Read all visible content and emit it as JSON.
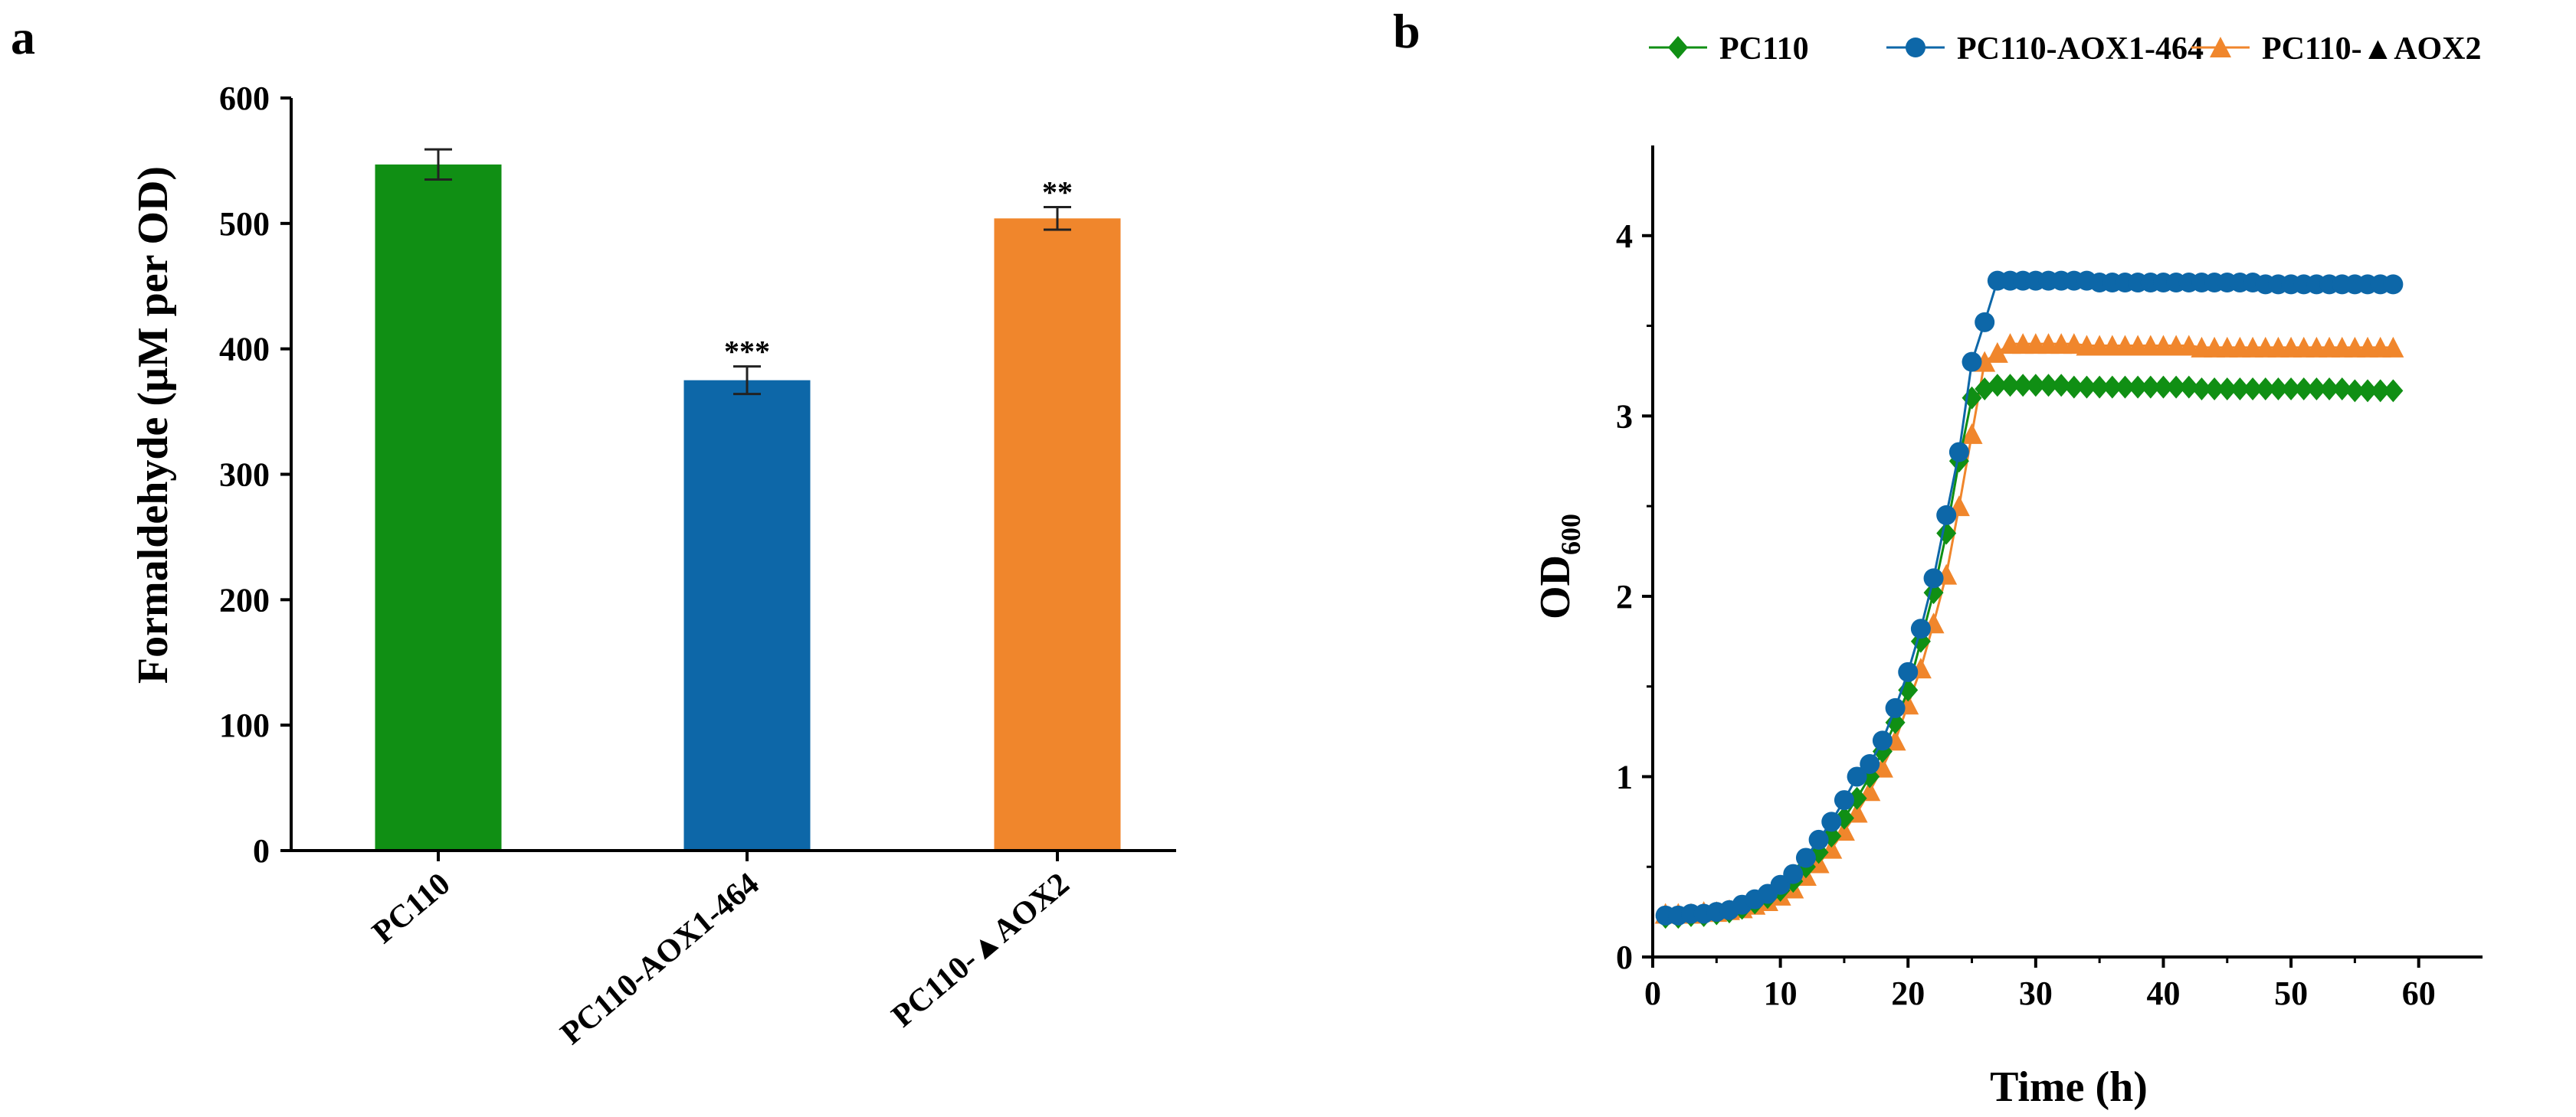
{
  "colors": {
    "green": "#108f14",
    "blue": "#0d67a8",
    "orange": "#f0862c",
    "axis": "#000000"
  },
  "chart_data": [
    {
      "panel_label": "a",
      "type": "bar",
      "ylabel": "Formaldehyde (μM per OD)",
      "xlabel": "",
      "ylim": [
        0,
        600
      ],
      "yticks": [
        "0",
        "100",
        "200",
        "300",
        "400",
        "500",
        "600"
      ],
      "categories": [
        "PC110",
        "PC110-AOX1-464",
        "PC110-▲AOX2"
      ],
      "values": [
        547,
        375,
        504
      ],
      "errors": [
        12,
        11,
        9
      ],
      "significance": [
        "",
        "***",
        "**"
      ],
      "bar_colors": [
        "#108f14",
        "#0d67a8",
        "#f0862c"
      ]
    },
    {
      "panel_label": "b",
      "type": "line",
      "xlabel": "Time (h)",
      "ylabel_main": "OD",
      "ylabel_sub": "600",
      "xlim": [
        0,
        65
      ],
      "ylim": [
        0,
        4.5
      ],
      "xticks": [
        "0",
        "10",
        "20",
        "30",
        "40",
        "50",
        "60"
      ],
      "yticks": [
        "0",
        "1",
        "2",
        "3",
        "4"
      ],
      "legend_position": "top",
      "x": [
        1,
        2,
        3,
        4,
        5,
        6,
        7,
        8,
        9,
        10,
        11,
        12,
        13,
        14,
        15,
        16,
        17,
        18,
        19,
        20,
        21,
        22,
        23,
        24,
        25,
        26,
        27,
        28,
        29,
        30,
        31,
        32,
        33,
        34,
        35,
        36,
        37,
        38,
        39,
        40,
        41,
        42,
        43,
        44,
        45,
        46,
        47,
        48,
        49,
        50,
        51,
        52,
        53,
        54,
        55,
        56,
        57,
        58
      ],
      "series": [
        {
          "name": "PC110",
          "color": "#108f14",
          "marker": "diamond",
          "values": [
            0.22,
            0.22,
            0.23,
            0.23,
            0.24,
            0.25,
            0.27,
            0.3,
            0.33,
            0.37,
            0.42,
            0.5,
            0.58,
            0.67,
            0.77,
            0.88,
            1.0,
            1.14,
            1.3,
            1.48,
            1.75,
            2.02,
            2.35,
            2.75,
            3.1,
            3.15,
            3.17,
            3.17,
            3.17,
            3.17,
            3.17,
            3.17,
            3.16,
            3.16,
            3.16,
            3.16,
            3.16,
            3.16,
            3.16,
            3.16,
            3.16,
            3.16,
            3.15,
            3.15,
            3.15,
            3.15,
            3.15,
            3.15,
            3.15,
            3.15,
            3.15,
            3.15,
            3.15,
            3.15,
            3.14,
            3.14,
            3.14,
            3.14
          ]
        },
        {
          "name": "PC110-AOX1-464",
          "color": "#0d67a8",
          "marker": "circle",
          "values": [
            0.23,
            0.23,
            0.24,
            0.24,
            0.25,
            0.26,
            0.29,
            0.32,
            0.35,
            0.4,
            0.46,
            0.55,
            0.65,
            0.75,
            0.87,
            1.0,
            1.07,
            1.2,
            1.38,
            1.58,
            1.82,
            2.1,
            2.45,
            2.8,
            3.3,
            3.52,
            3.75,
            3.75,
            3.75,
            3.75,
            3.75,
            3.75,
            3.75,
            3.75,
            3.74,
            3.74,
            3.74,
            3.74,
            3.74,
            3.74,
            3.74,
            3.74,
            3.74,
            3.74,
            3.74,
            3.74,
            3.74,
            3.73,
            3.73,
            3.73,
            3.73,
            3.73,
            3.73,
            3.73,
            3.73,
            3.73,
            3.73,
            3.73
          ]
        },
        {
          "name": "PC110-▲AOX2",
          "color": "#f0862c",
          "marker": "triangle",
          "values": [
            0.24,
            0.24,
            0.24,
            0.25,
            0.25,
            0.26,
            0.27,
            0.29,
            0.31,
            0.34,
            0.38,
            0.45,
            0.52,
            0.6,
            0.7,
            0.8,
            0.92,
            1.05,
            1.2,
            1.4,
            1.6,
            1.85,
            2.12,
            2.5,
            2.9,
            3.3,
            3.35,
            3.4,
            3.4,
            3.4,
            3.4,
            3.4,
            3.4,
            3.39,
            3.39,
            3.39,
            3.39,
            3.39,
            3.39,
            3.39,
            3.39,
            3.39,
            3.38,
            3.38,
            3.38,
            3.38,
            3.38,
            3.38,
            3.38,
            3.38,
            3.38,
            3.38,
            3.38,
            3.38,
            3.38,
            3.38,
            3.38,
            3.38
          ]
        }
      ]
    }
  ]
}
